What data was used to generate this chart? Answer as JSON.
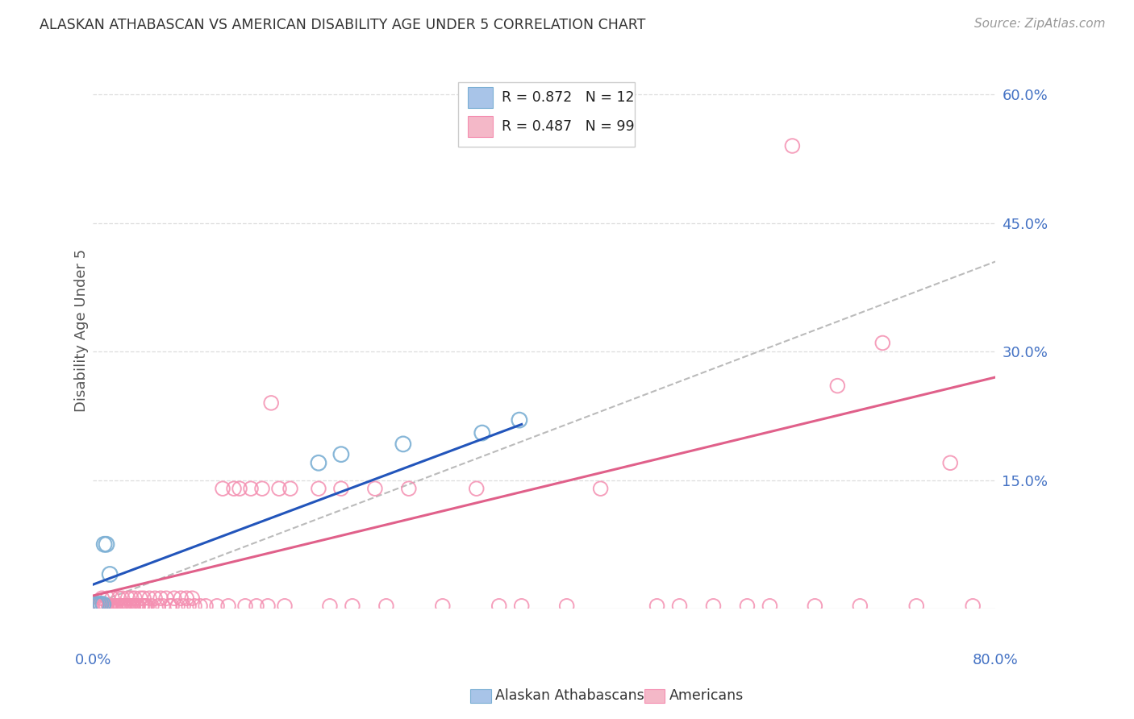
{
  "title": "ALASKAN ATHABASCAN VS AMERICAN DISABILITY AGE UNDER 5 CORRELATION CHART",
  "source": "Source: ZipAtlas.com",
  "ylabel": "Disability Age Under 5",
  "xlim": [
    0.0,
    0.8
  ],
  "ylim": [
    0.0,
    0.65
  ],
  "yticks": [
    0.15,
    0.3,
    0.45,
    0.6
  ],
  "ytick_labels": [
    "15.0%",
    "30.0%",
    "45.0%",
    "60.0%"
  ],
  "athabascan_edge_color": "#7bafd4",
  "athabascan_fill_color": "none",
  "american_edge_color": "#f48fb1",
  "american_fill_color": "none",
  "athabascan_line_color": "#2255bb",
  "american_line_color": "#e0608a",
  "dash_line_color": "#bbbbbb",
  "background_color": "#ffffff",
  "grid_color": "#dddddd",
  "right_tick_color": "#4472c4",
  "title_color": "#333333",
  "source_color": "#999999",
  "ylabel_color": "#555555",
  "legend_border_color": "#cccccc",
  "legend_blue_fill": "#a8c4e8",
  "legend_pink_fill": "#f4b8c8",
  "athabascan_points": [
    [
      0.003,
      0.005
    ],
    [
      0.005,
      0.005
    ],
    [
      0.007,
      0.005
    ],
    [
      0.009,
      0.005
    ],
    [
      0.01,
      0.075
    ],
    [
      0.012,
      0.075
    ],
    [
      0.015,
      0.04
    ],
    [
      0.2,
      0.17
    ],
    [
      0.22,
      0.18
    ],
    [
      0.275,
      0.192
    ],
    [
      0.345,
      0.205
    ],
    [
      0.378,
      0.22
    ]
  ],
  "american_points": [
    [
      0.003,
      0.003
    ],
    [
      0.004,
      0.003
    ],
    [
      0.005,
      0.003
    ],
    [
      0.006,
      0.003
    ],
    [
      0.007,
      0.003
    ],
    [
      0.008,
      0.012
    ],
    [
      0.009,
      0.003
    ],
    [
      0.01,
      0.003
    ],
    [
      0.011,
      0.003
    ],
    [
      0.012,
      0.003
    ],
    [
      0.013,
      0.012
    ],
    [
      0.014,
      0.003
    ],
    [
      0.015,
      0.003
    ],
    [
      0.016,
      0.003
    ],
    [
      0.017,
      0.012
    ],
    [
      0.018,
      0.003
    ],
    [
      0.019,
      0.003
    ],
    [
      0.02,
      0.003
    ],
    [
      0.022,
      0.003
    ],
    [
      0.023,
      0.012
    ],
    [
      0.024,
      0.003
    ],
    [
      0.025,
      0.003
    ],
    [
      0.026,
      0.012
    ],
    [
      0.027,
      0.003
    ],
    [
      0.028,
      0.003
    ],
    [
      0.029,
      0.003
    ],
    [
      0.03,
      0.003
    ],
    [
      0.031,
      0.012
    ],
    [
      0.032,
      0.003
    ],
    [
      0.033,
      0.003
    ],
    [
      0.034,
      0.012
    ],
    [
      0.035,
      0.003
    ],
    [
      0.036,
      0.003
    ],
    [
      0.037,
      0.012
    ],
    [
      0.038,
      0.003
    ],
    [
      0.039,
      0.003
    ],
    [
      0.04,
      0.003
    ],
    [
      0.042,
      0.012
    ],
    [
      0.043,
      0.003
    ],
    [
      0.044,
      0.003
    ],
    [
      0.045,
      0.012
    ],
    [
      0.046,
      0.003
    ],
    [
      0.047,
      0.003
    ],
    [
      0.048,
      0.003
    ],
    [
      0.05,
      0.012
    ],
    [
      0.052,
      0.003
    ],
    [
      0.055,
      0.012
    ],
    [
      0.058,
      0.003
    ],
    [
      0.06,
      0.012
    ],
    [
      0.062,
      0.003
    ],
    [
      0.065,
      0.012
    ],
    [
      0.068,
      0.003
    ],
    [
      0.07,
      0.003
    ],
    [
      0.072,
      0.012
    ],
    [
      0.075,
      0.003
    ],
    [
      0.078,
      0.012
    ],
    [
      0.08,
      0.003
    ],
    [
      0.083,
      0.012
    ],
    [
      0.085,
      0.003
    ],
    [
      0.088,
      0.012
    ],
    [
      0.09,
      0.003
    ],
    [
      0.095,
      0.003
    ],
    [
      0.1,
      0.003
    ],
    [
      0.11,
      0.003
    ],
    [
      0.115,
      0.14
    ],
    [
      0.12,
      0.003
    ],
    [
      0.125,
      0.14
    ],
    [
      0.13,
      0.14
    ],
    [
      0.135,
      0.003
    ],
    [
      0.14,
      0.14
    ],
    [
      0.145,
      0.003
    ],
    [
      0.15,
      0.14
    ],
    [
      0.155,
      0.003
    ],
    [
      0.158,
      0.24
    ],
    [
      0.165,
      0.14
    ],
    [
      0.17,
      0.003
    ],
    [
      0.175,
      0.14
    ],
    [
      0.2,
      0.14
    ],
    [
      0.21,
      0.003
    ],
    [
      0.22,
      0.14
    ],
    [
      0.23,
      0.003
    ],
    [
      0.25,
      0.14
    ],
    [
      0.26,
      0.003
    ],
    [
      0.28,
      0.14
    ],
    [
      0.31,
      0.003
    ],
    [
      0.34,
      0.14
    ],
    [
      0.36,
      0.003
    ],
    [
      0.38,
      0.003
    ],
    [
      0.42,
      0.003
    ],
    [
      0.45,
      0.14
    ],
    [
      0.5,
      0.003
    ],
    [
      0.52,
      0.003
    ],
    [
      0.55,
      0.003
    ],
    [
      0.58,
      0.003
    ],
    [
      0.6,
      0.003
    ],
    [
      0.62,
      0.54
    ],
    [
      0.64,
      0.003
    ],
    [
      0.66,
      0.26
    ],
    [
      0.68,
      0.003
    ],
    [
      0.7,
      0.31
    ],
    [
      0.73,
      0.003
    ],
    [
      0.76,
      0.17
    ],
    [
      0.78,
      0.003
    ]
  ],
  "ath_line": [
    [
      0.0,
      0.028
    ],
    [
      0.38,
      0.215
    ]
  ],
  "am_line": [
    [
      0.0,
      0.015
    ],
    [
      0.8,
      0.27
    ]
  ],
  "dash_line": [
    [
      0.0,
      0.005
    ],
    [
      0.8,
      0.405
    ]
  ]
}
